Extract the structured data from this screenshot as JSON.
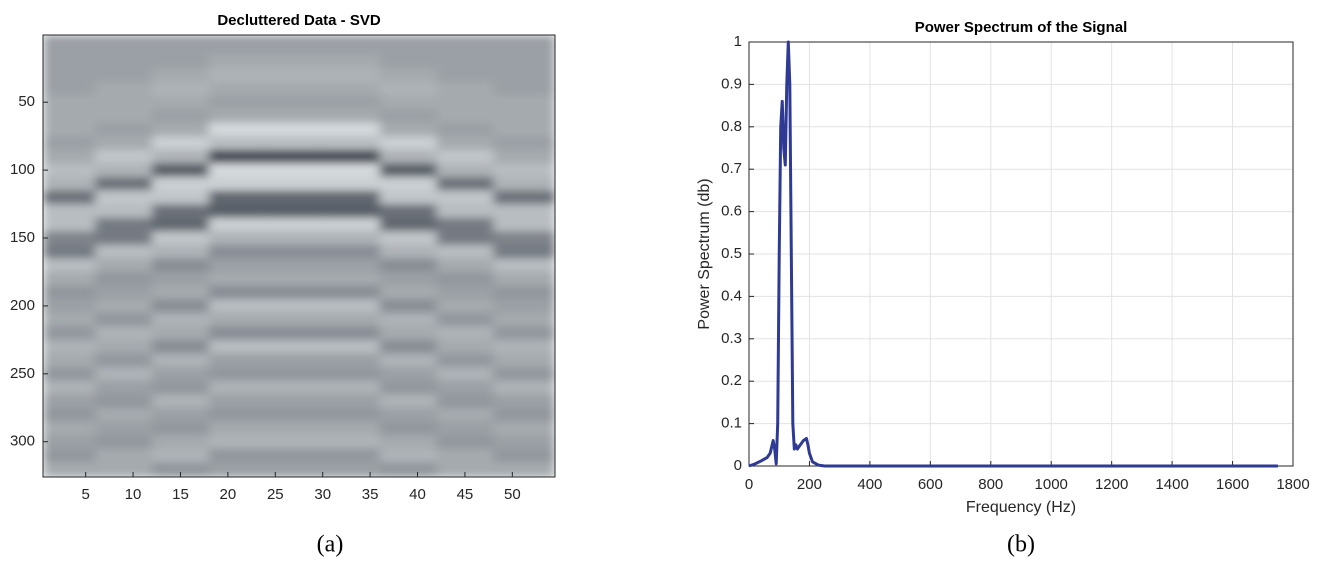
{
  "chart_data": [
    {
      "type": "heatmap",
      "title": "Decluttered Data - SVD",
      "caption": "(a)",
      "x": [
        3,
        9,
        15,
        21,
        27,
        33,
        39,
        45,
        51
      ],
      "y": [
        10,
        20,
        30,
        40,
        50,
        60,
        70,
        80,
        90,
        100,
        110,
        120,
        130,
        140,
        150,
        160,
        170,
        180,
        190,
        200,
        210,
        220,
        230,
        240,
        250,
        260,
        270,
        280,
        290,
        300,
        310,
        320
      ],
      "values": [
        [
          0,
          0,
          0,
          0,
          0,
          0,
          0,
          0,
          0
        ],
        [
          0,
          0,
          0,
          0.1,
          0.1,
          0.1,
          0,
          0,
          0
        ],
        [
          0,
          0,
          0.1,
          0.2,
          0.2,
          0.2,
          0.1,
          0,
          0
        ],
        [
          0,
          0.1,
          0.2,
          0.1,
          0.1,
          0.1,
          0.2,
          0.1,
          0
        ],
        [
          0.1,
          0.1,
          0.1,
          0,
          0,
          0,
          0.1,
          0.1,
          0.1
        ],
        [
          0.1,
          0.1,
          0,
          0.1,
          0.1,
          0.1,
          0,
          0.1,
          0.1
        ],
        [
          0.1,
          0,
          0.1,
          0.6,
          0.6,
          0.6,
          0.1,
          0,
          0.1
        ],
        [
          0,
          0.1,
          0.5,
          0.3,
          0.3,
          0.3,
          0.5,
          0.1,
          0
        ],
        [
          0.1,
          0.4,
          0.2,
          -0.9,
          -0.9,
          -0.9,
          0.2,
          0.4,
          0.1
        ],
        [
          0.3,
          0.2,
          -0.7,
          0.6,
          0.6,
          0.6,
          -0.7,
          0.2,
          0.3
        ],
        [
          0.2,
          -0.5,
          0.5,
          0.5,
          0.5,
          0.5,
          0.5,
          -0.5,
          0.2
        ],
        [
          -0.5,
          0.4,
          0.4,
          -0.6,
          -0.6,
          -0.6,
          0.4,
          0.4,
          -0.5
        ],
        [
          0.3,
          0.3,
          -0.5,
          -0.7,
          -0.7,
          -0.7,
          -0.5,
          0.3,
          0.3
        ],
        [
          0.3,
          -0.4,
          -0.6,
          0.5,
          0.5,
          0.5,
          -0.6,
          -0.4,
          0.3
        ],
        [
          -0.3,
          -0.4,
          0.4,
          0.2,
          0.2,
          0.2,
          0.4,
          -0.4,
          -0.3
        ],
        [
          -0.4,
          0.3,
          0.2,
          -0.2,
          -0.2,
          -0.2,
          0.2,
          0.3,
          -0.4
        ],
        [
          0.3,
          0.1,
          -0.2,
          0,
          0,
          0,
          -0.2,
          0.1,
          0.3
        ],
        [
          0.1,
          -0.1,
          0,
          0.1,
          0.1,
          0.1,
          0,
          -0.1,
          0.1
        ],
        [
          -0.1,
          0,
          0.1,
          -0.2,
          -0.2,
          -0.2,
          0.1,
          0,
          -0.1
        ],
        [
          0,
          0.1,
          -0.2,
          0.3,
          0.3,
          0.3,
          -0.2,
          0.1,
          0
        ],
        [
          0.1,
          -0.1,
          0.2,
          0.1,
          0.1,
          0.1,
          0.2,
          -0.1,
          0.1
        ],
        [
          -0.1,
          0.2,
          0.1,
          -0.2,
          -0.2,
          -0.2,
          0.1,
          0.2,
          -0.1
        ],
        [
          0.2,
          0.1,
          -0.2,
          0.3,
          0.3,
          0.3,
          -0.2,
          0.1,
          0.2
        ],
        [
          0.1,
          -0.1,
          0.2,
          0,
          0,
          0,
          0.2,
          -0.1,
          0.1
        ],
        [
          -0.1,
          0.2,
          0,
          -0.1,
          -0.1,
          -0.1,
          0,
          0.2,
          -0.1
        ],
        [
          0.2,
          0,
          -0.1,
          0.2,
          0.2,
          0.2,
          -0.1,
          0,
          0.2
        ],
        [
          0,
          -0.1,
          0.2,
          0,
          0,
          0,
          0.2,
          -0.1,
          0
        ],
        [
          -0.1,
          0.1,
          0,
          -0.1,
          -0.1,
          -0.1,
          0,
          0.1,
          -0.1
        ],
        [
          0.1,
          0,
          -0.1,
          0.1,
          0.1,
          0.1,
          -0.1,
          0,
          0.1
        ],
        [
          0,
          -0.1,
          0.1,
          0.2,
          0.2,
          0.2,
          0.1,
          -0.1,
          0
        ],
        [
          -0.1,
          0.1,
          0.2,
          -0.1,
          -0.1,
          -0.1,
          0.2,
          0.1,
          -0.1
        ],
        [
          0.1,
          0.1,
          -0.1,
          0,
          0,
          0,
          -0.1,
          0.1,
          0.1
        ]
      ],
      "xlim": [
        0.5,
        54.5
      ],
      "ylim": [
        0.5,
        326
      ],
      "y_reversed": true,
      "xticks": [
        5,
        10,
        15,
        20,
        25,
        30,
        35,
        40,
        45,
        50
      ],
      "yticks": [
        50,
        100,
        150,
        200,
        250,
        300
      ]
    },
    {
      "type": "line",
      "title": "Power Spectrum of the Signal",
      "caption": "(b)",
      "xlabel": "Frequency (Hz)",
      "ylabel": "Power Spectrum (db)",
      "x": [
        0,
        20,
        40,
        60,
        70,
        80,
        85,
        90,
        95,
        100,
        105,
        110,
        115,
        120,
        125,
        130,
        135,
        140,
        145,
        150,
        155,
        160,
        170,
        180,
        190,
        195,
        200,
        210,
        230,
        250,
        300,
        500,
        1000,
        1500,
        1750
      ],
      "series": [
        {
          "color": "#2e3a94",
          "values": [
            0,
            0.005,
            0.012,
            0.02,
            0.03,
            0.06,
            0.04,
            0.005,
            0.1,
            0.5,
            0.8,
            0.86,
            0.75,
            0.71,
            0.9,
            1.0,
            0.9,
            0.5,
            0.1,
            0.04,
            0.05,
            0.04,
            0.05,
            0.06,
            0.065,
            0.05,
            0.03,
            0.01,
            0.002,
            0,
            0,
            0,
            0,
            0,
            0
          ]
        }
      ],
      "xlim": [
        0,
        1800
      ],
      "ylim": [
        0,
        1
      ],
      "xticks": [
        0,
        200,
        400,
        600,
        800,
        1000,
        1200,
        1400,
        1600,
        1800
      ],
      "yticks": [
        0,
        0.1,
        0.2,
        0.3,
        0.4,
        0.5,
        0.6,
        0.7,
        0.8,
        0.9,
        1
      ],
      "grid": true
    }
  ]
}
